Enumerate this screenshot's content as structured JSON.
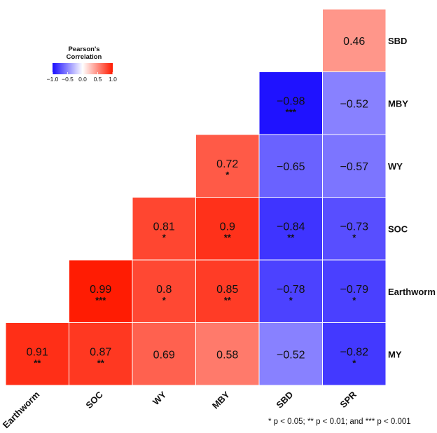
{
  "chart_data": {
    "type": "heatmap",
    "x_categories": [
      "Earthworm",
      "SOC",
      "WY",
      "MBY",
      "SBD",
      "SPR"
    ],
    "y_categories": [
      "SBD",
      "MBY",
      "WY",
      "SOC",
      "Earthworm",
      "MY"
    ],
    "cells": [
      {
        "x": "SPR",
        "y": "SBD",
        "value": 0.46,
        "value_label": "0.46",
        "sig": ""
      },
      {
        "x": "SBD",
        "y": "MBY",
        "value": -0.98,
        "value_label": "−0.98",
        "sig": "***"
      },
      {
        "x": "SPR",
        "y": "MBY",
        "value": -0.52,
        "value_label": "−0.52",
        "sig": ""
      },
      {
        "x": "MBY",
        "y": "WY",
        "value": 0.72,
        "value_label": "0.72",
        "sig": "*"
      },
      {
        "x": "SBD",
        "y": "WY",
        "value": -0.65,
        "value_label": "−0.65",
        "sig": ""
      },
      {
        "x": "SPR",
        "y": "WY",
        "value": -0.57,
        "value_label": "−0.57",
        "sig": ""
      },
      {
        "x": "WY",
        "y": "SOC",
        "value": 0.81,
        "value_label": "0.81",
        "sig": "*"
      },
      {
        "x": "MBY",
        "y": "SOC",
        "value": 0.9,
        "value_label": "0.9",
        "sig": "**"
      },
      {
        "x": "SBD",
        "y": "SOC",
        "value": -0.84,
        "value_label": "−0.84",
        "sig": "**"
      },
      {
        "x": "SPR",
        "y": "SOC",
        "value": -0.73,
        "value_label": "−0.73",
        "sig": "*"
      },
      {
        "x": "SOC",
        "y": "Earthworm",
        "value": 0.99,
        "value_label": "0.99",
        "sig": "***"
      },
      {
        "x": "WY",
        "y": "Earthworm",
        "value": 0.8,
        "value_label": "0.8",
        "sig": "*"
      },
      {
        "x": "MBY",
        "y": "Earthworm",
        "value": 0.85,
        "value_label": "0.85",
        "sig": "**"
      },
      {
        "x": "SBD",
        "y": "Earthworm",
        "value": -0.78,
        "value_label": "−0.78",
        "sig": "*"
      },
      {
        "x": "SPR",
        "y": "Earthworm",
        "value": -0.79,
        "value_label": "−0.79",
        "sig": "*"
      },
      {
        "x": "Earthworm",
        "y": "MY",
        "value": 0.91,
        "value_label": "0.91",
        "sig": "**"
      },
      {
        "x": "SOC",
        "y": "MY",
        "value": 0.87,
        "value_label": "0.87",
        "sig": "**"
      },
      {
        "x": "WY",
        "y": "MY",
        "value": 0.69,
        "value_label": "0.69",
        "sig": ""
      },
      {
        "x": "MBY",
        "y": "MY",
        "value": 0.58,
        "value_label": "0.58",
        "sig": ""
      },
      {
        "x": "SBD",
        "y": "MY",
        "value": -0.52,
        "value_label": "−0.52",
        "sig": ""
      },
      {
        "x": "SPR",
        "y": "MY",
        "value": -0.82,
        "value_label": "−0.82",
        "sig": "*"
      }
    ],
    "legend": {
      "title_line1": "Pearson's",
      "title_line2": "Correlation",
      "placement": "top-left",
      "range": [
        -1,
        1
      ],
      "tick_labels": [
        "−1.0",
        "−0.5",
        "0.0",
        "0.5",
        "1.0"
      ],
      "tick_values": [
        -1,
        -0.5,
        0,
        0.5,
        1
      ]
    },
    "colors": {
      "low": "#1a0dff",
      "mid": "#ffffff",
      "high": "#ff1a00"
    },
    "footnote": "* p < 0.05; ** p < 0.01; and *** p < 0.001"
  }
}
